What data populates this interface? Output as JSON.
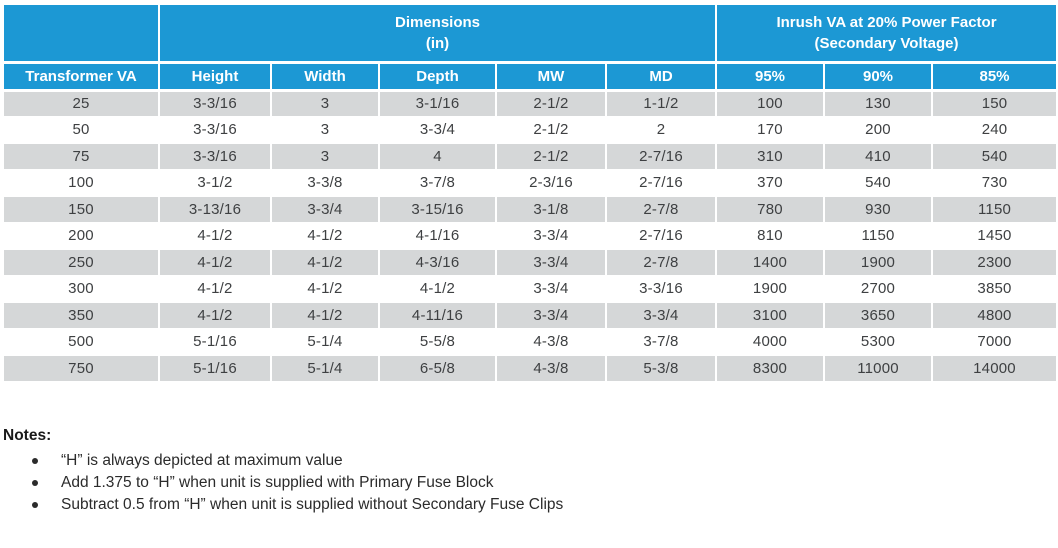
{
  "colors": {
    "header_blue": "#1C98D4",
    "shaded_row_gray": "#D5D7D8",
    "data_text": "#3E4042"
  },
  "table": {
    "groups": {
      "dimensions": {
        "line1": "Dimensions",
        "line2": "(in)"
      },
      "inrush": {
        "line1": "Inrush VA at 20% Power Factor",
        "line2": "(Secondary Voltage)"
      }
    },
    "columns": [
      "Transformer VA",
      "Height",
      "Width",
      "Depth",
      "MW",
      "MD",
      "95%",
      "90%",
      "85%"
    ],
    "rows": [
      [
        "25",
        "3-3/16",
        "3",
        "3-1/16",
        "2-1/2",
        "1-1/2",
        "100",
        "130",
        "150"
      ],
      [
        "50",
        "3-3/16",
        "3",
        "3-3/4",
        "2-1/2",
        "2",
        "170",
        "200",
        "240"
      ],
      [
        "75",
        "3-3/16",
        "3",
        "4",
        "2-1/2",
        "2-7/16",
        "310",
        "410",
        "540"
      ],
      [
        "100",
        "3-1/2",
        "3-3/8",
        "3-7/8",
        "2-3/16",
        "2-7/16",
        "370",
        "540",
        "730"
      ],
      [
        "150",
        "3-13/16",
        "3-3/4",
        "3-15/16",
        "3-1/8",
        "2-7/8",
        "780",
        "930",
        "1150"
      ],
      [
        "200",
        "4-1/2",
        "4-1/2",
        "4-1/16",
        "3-3/4",
        "2-7/16",
        "810",
        "1150",
        "1450"
      ],
      [
        "250",
        "4-1/2",
        "4-1/2",
        "4-3/16",
        "3-3/4",
        "2-7/8",
        "1400",
        "1900",
        "2300"
      ],
      [
        "300",
        "4-1/2",
        "4-1/2",
        "4-1/2",
        "3-3/4",
        "3-3/16",
        "1900",
        "2700",
        "3850"
      ],
      [
        "350",
        "4-1/2",
        "4-1/2",
        "4-11/16",
        "3-3/4",
        "3-3/4",
        "3100",
        "3650",
        "4800"
      ],
      [
        "500",
        "5-1/16",
        "5-1/4",
        "5-5/8",
        "4-3/8",
        "3-7/8",
        "4000",
        "5300",
        "7000"
      ],
      [
        "750",
        "5-1/16",
        "5-1/4",
        "6-5/8",
        "4-3/8",
        "5-3/8",
        "8300",
        "11000",
        "14000"
      ]
    ]
  },
  "notes": {
    "title": "Notes:",
    "items": [
      "“H” is always depicted at maximum value",
      "Add 1.375 to “H” when unit is supplied with Primary Fuse Block",
      "Subtract 0.5 from “H” when unit is supplied without Secondary Fuse Clips"
    ]
  }
}
